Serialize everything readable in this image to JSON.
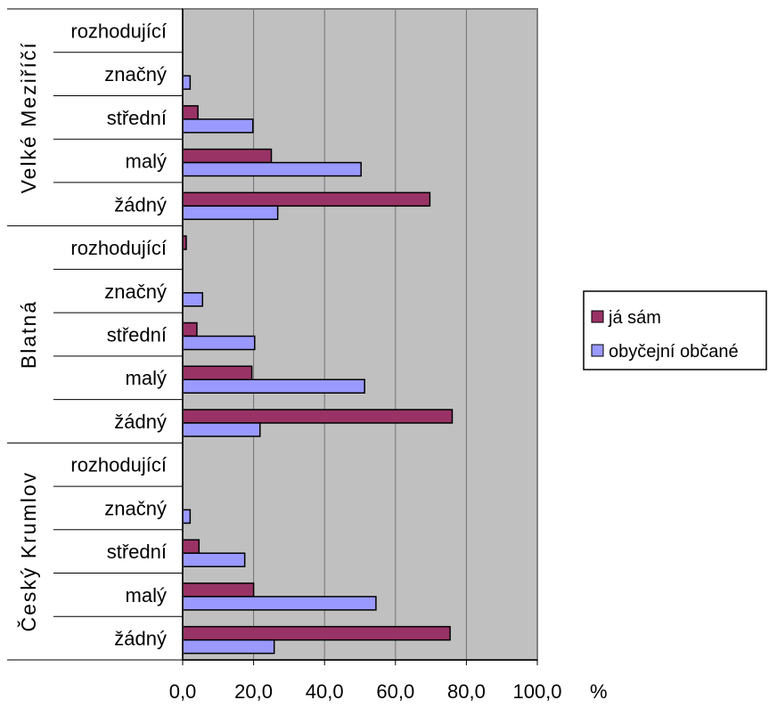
{
  "chart_data": {
    "type": "bar",
    "orientation": "horizontal",
    "unit_label": "%",
    "xlim": [
      0,
      100
    ],
    "x_ticks": [
      "0,0",
      "20,0",
      "40,0",
      "60,0",
      "80,0",
      "100,0"
    ],
    "grid": true,
    "legend_position": "right",
    "series": [
      {
        "name": "já sám",
        "color": "#993366"
      },
      {
        "name": "obyčejní občané",
        "color": "#9999ff"
      }
    ],
    "groups": [
      {
        "name": "Velké Meziříčí",
        "categories": [
          "rozhodující",
          "značný",
          "střední",
          "malý",
          "žádný"
        ],
        "values": [
          [
            0,
            0
          ],
          [
            0,
            2.1
          ],
          [
            4.3,
            19.8
          ],
          [
            25.0,
            50.3
          ],
          [
            69.7,
            26.8
          ]
        ]
      },
      {
        "name": "Blatná",
        "categories": [
          "rozhodující",
          "značný",
          "střední",
          "malý",
          "žádný"
        ],
        "values": [
          [
            1.0,
            0
          ],
          [
            0,
            5.6
          ],
          [
            4.0,
            20.3
          ],
          [
            19.5,
            51.3
          ],
          [
            76.0,
            21.8
          ]
        ]
      },
      {
        "name": "Český Krumlov",
        "categories": [
          "rozhodující",
          "značný",
          "střední",
          "malý",
          "žádný"
        ],
        "values": [
          [
            0,
            0
          ],
          [
            0,
            2.1
          ],
          [
            4.6,
            17.5
          ],
          [
            20.0,
            54.5
          ],
          [
            75.4,
            25.8
          ]
        ]
      }
    ],
    "colors": {
      "plot_background": "#c0c0c0",
      "gridline": "#707070"
    }
  }
}
